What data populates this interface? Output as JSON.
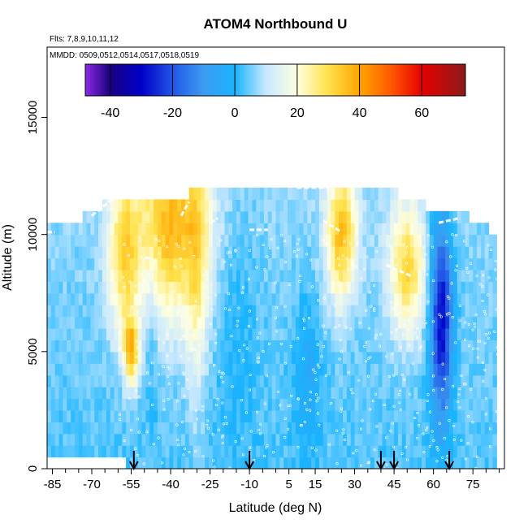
{
  "chart_data": {
    "type": "heatmap",
    "title": "ATOM4 Northbound U",
    "flights_note": "Flts: 7,8,9,10,11,12",
    "dates_note": "MMDD: 0509,0512,0514,0517,0518,0519",
    "xlabel": "Latitude (deg N)",
    "ylabel": "Altitude (m)",
    "xlim": [
      -87,
      87
    ],
    "ylim": [
      0,
      18000
    ],
    "x_ticks": [
      -85,
      -70,
      -55,
      -40,
      -25,
      -10,
      5,
      15,
      30,
      45,
      60,
      75
    ],
    "x_minor_ticks": [
      -80,
      -75,
      -65,
      -60,
      -50,
      -45,
      -35,
      -30,
      -20,
      -15,
      -5,
      0,
      10,
      20,
      25,
      35,
      40,
      50,
      55,
      65,
      70,
      80,
      85
    ],
    "y_ticks": [
      0,
      5000,
      10000,
      15000
    ],
    "colorbar": {
      "range": [
        -48,
        74
      ],
      "ticks": [
        -40,
        -20,
        0,
        20,
        40,
        60
      ],
      "stops": [
        {
          "v": -48,
          "c": "#8a2be2"
        },
        {
          "v": -40,
          "c": "#1a0080"
        },
        {
          "v": -30,
          "c": "#0000c8"
        },
        {
          "v": -20,
          "c": "#2255e6"
        },
        {
          "v": -10,
          "c": "#3c9cf0"
        },
        {
          "v": 0,
          "c": "#19b4ff"
        },
        {
          "v": 10,
          "c": "#c8e8ff"
        },
        {
          "v": 20,
          "c": "#ffffe0"
        },
        {
          "v": 30,
          "c": "#ffe14a"
        },
        {
          "v": 40,
          "c": "#ffa500"
        },
        {
          "v": 50,
          "c": "#ff5a00"
        },
        {
          "v": 60,
          "c": "#e60000"
        },
        {
          "v": 74,
          "c": "#8b1a1a"
        }
      ]
    },
    "arrow_latitudes": [
      -54,
      -10,
      40,
      45,
      66
    ],
    "data_extent": {
      "lat": [
        -87,
        84
      ],
      "alt": [
        0,
        12500
      ],
      "profile_tops": [
        [
          -87,
          10400
        ],
        [
          -80,
          10500
        ],
        [
          -75,
          10700
        ],
        [
          -70,
          11000
        ],
        [
          -65,
          11300
        ],
        [
          -58,
          11700
        ],
        [
          -45,
          11700
        ],
        [
          -35,
          11700
        ],
        [
          -25,
          11900
        ],
        [
          -10,
          12000
        ],
        [
          10,
          12000
        ],
        [
          25,
          12000
        ],
        [
          35,
          11900
        ],
        [
          45,
          11800
        ],
        [
          55,
          11300
        ],
        [
          65,
          11000
        ],
        [
          75,
          10700
        ],
        [
          84,
          10000
        ]
      ],
      "bottom_left": [
        [
          -87,
          700
        ],
        [
          -60,
          700
        ],
        [
          -55,
          0
        ],
        [
          84,
          0
        ]
      ]
    },
    "field": {
      "base_value": 3,
      "jets": [
        {
          "lat": -40,
          "alt": 10500,
          "sigma_lat": 10,
          "sigma_alt": 3000,
          "amp": 30
        },
        {
          "lat": -58,
          "alt": 9000,
          "sigma_lat": 4,
          "sigma_alt": 2500,
          "amp": 22
        },
        {
          "lat": -55,
          "alt": 5000,
          "sigma_lat": 2,
          "sigma_alt": 1000,
          "amp": 30
        },
        {
          "lat": 25,
          "alt": 10000,
          "sigma_lat": 4,
          "sigma_alt": 2000,
          "amp": 30
        },
        {
          "lat": 50,
          "alt": 8500,
          "sigma_lat": 5,
          "sigma_alt": 2000,
          "amp": 25
        },
        {
          "lat": -30,
          "alt": 8000,
          "sigma_lat": 3,
          "sigma_alt": 4000,
          "amp": 12
        },
        {
          "lat": 63,
          "alt": 6500,
          "sigma_lat": 3,
          "sigma_alt": 3000,
          "amp": -35
        },
        {
          "lat": 12,
          "alt": 4000,
          "sigma_lat": 4,
          "sigma_alt": 2500,
          "amp": -8
        },
        {
          "lat": -15,
          "alt": 6000,
          "sigma_lat": 6,
          "sigma_alt": 4000,
          "amp": -5
        },
        {
          "lat": -47,
          "alt": 6500,
          "sigma_lat": 2,
          "sigma_alt": 3000,
          "amp": -6
        }
      ]
    }
  }
}
